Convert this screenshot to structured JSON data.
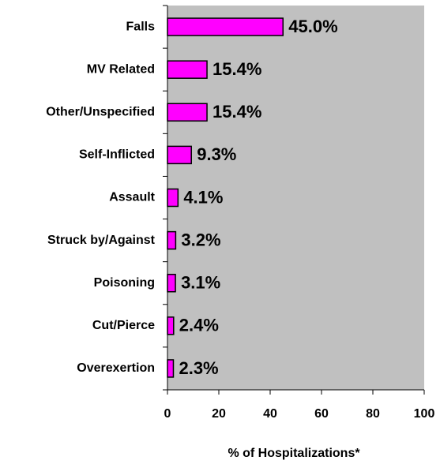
{
  "chart_data": {
    "type": "bar",
    "orientation": "horizontal",
    "xlabel": "% of Hospitalizations*",
    "categories": [
      "Falls",
      "MV Related",
      "Other/Unspecified",
      "Self-Inflicted",
      "Assault",
      "Struck by/Against",
      "Poisoning",
      "Cut/Pierce",
      "Overexertion"
    ],
    "values": [
      45.0,
      15.4,
      15.4,
      9.3,
      4.1,
      3.2,
      3.1,
      2.4,
      2.3
    ],
    "value_labels": [
      "45.0%",
      "15.4%",
      "15.4%",
      "9.3%",
      "4.1%",
      "3.2%",
      "3.1%",
      "2.4%",
      "2.3%"
    ],
    "color": "#ff00ff",
    "background": "#c0c0c0",
    "xlim": [
      0,
      100
    ],
    "xticks": [
      0,
      20,
      40,
      60,
      80,
      100
    ]
  }
}
